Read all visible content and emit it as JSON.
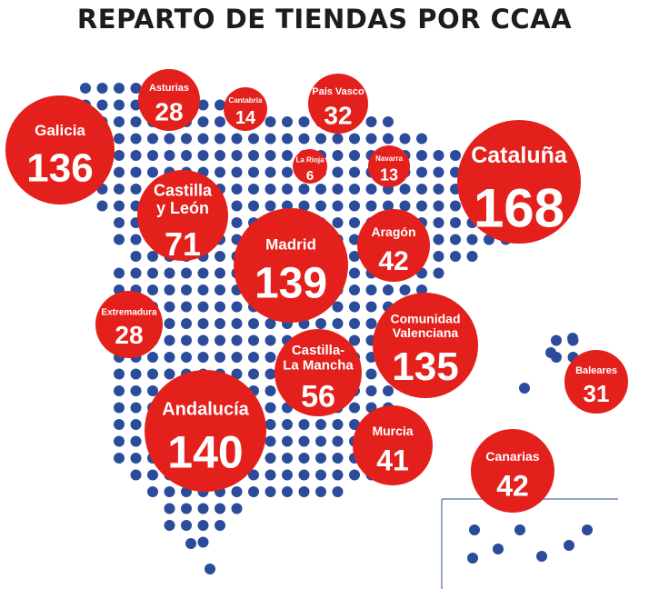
{
  "title": "REPARTO DE TIENDAS POR CCAA",
  "colors": {
    "bubble": "#e3201b",
    "dot": "#2b4c9b",
    "title": "#1c1c1c",
    "inset_line": "#2b4c9b"
  },
  "chart_data": {
    "type": "bubble-map",
    "title": "REPARTO DE TIENDAS POR CCAA",
    "unit": "tiendas",
    "regions": [
      {
        "name": "Galicia",
        "value": 136
      },
      {
        "name": "Asturias",
        "value": 28
      },
      {
        "name": "Cantabria",
        "value": 14
      },
      {
        "name": "País Vasco",
        "value": 32
      },
      {
        "name": "La Rioja",
        "value": 6
      },
      {
        "name": "Navarra",
        "value": 13
      },
      {
        "name": "Cataluña",
        "value": 168
      },
      {
        "name": "Castilla y León",
        "value": 71
      },
      {
        "name": "Madrid",
        "value": 139
      },
      {
        "name": "Aragón",
        "value": 42
      },
      {
        "name": "Extremadura",
        "value": 28
      },
      {
        "name": "Comunidad Valenciana",
        "value": 135
      },
      {
        "name": "Castilla-La Mancha",
        "value": 56
      },
      {
        "name": "Baleares",
        "value": 31
      },
      {
        "name": "Andalucía",
        "value": 140
      },
      {
        "name": "Murcia",
        "value": 41
      },
      {
        "name": "Canarias",
        "value": 42
      }
    ]
  }
}
